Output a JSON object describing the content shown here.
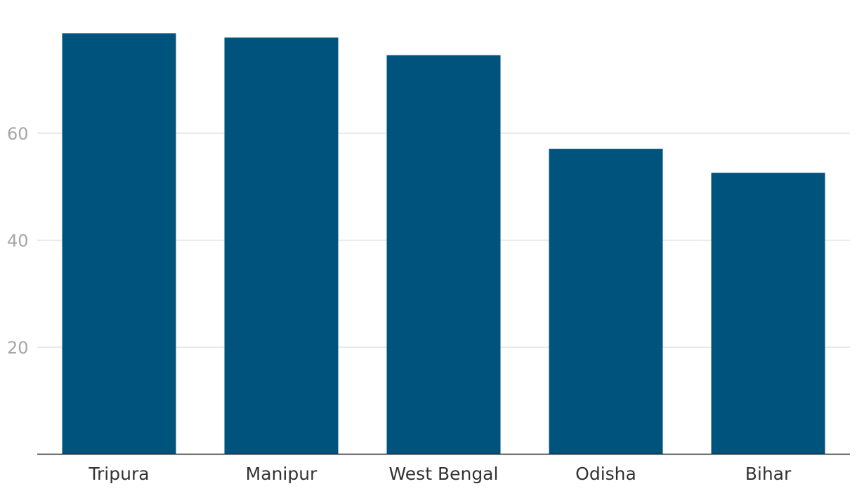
{
  "chart_data": {
    "type": "bar",
    "title": "",
    "xlabel": "",
    "ylabel": "",
    "categories": [
      "Tripura",
      "Manipur",
      "West Bengal",
      "Odisha",
      "Bihar"
    ],
    "values": [
      78.7,
      77.9,
      74.6,
      57.1,
      52.6
    ],
    "ylim": [
      0,
      80
    ],
    "yticks": [
      20,
      40,
      60
    ],
    "grid": true,
    "legend": "none",
    "colors": {
      "bar": "#00537d",
      "grid": "#e3e3e3",
      "baseline": "#222222",
      "y_tick_text": "#a6a6a6",
      "x_tick_text": "#333333"
    }
  }
}
